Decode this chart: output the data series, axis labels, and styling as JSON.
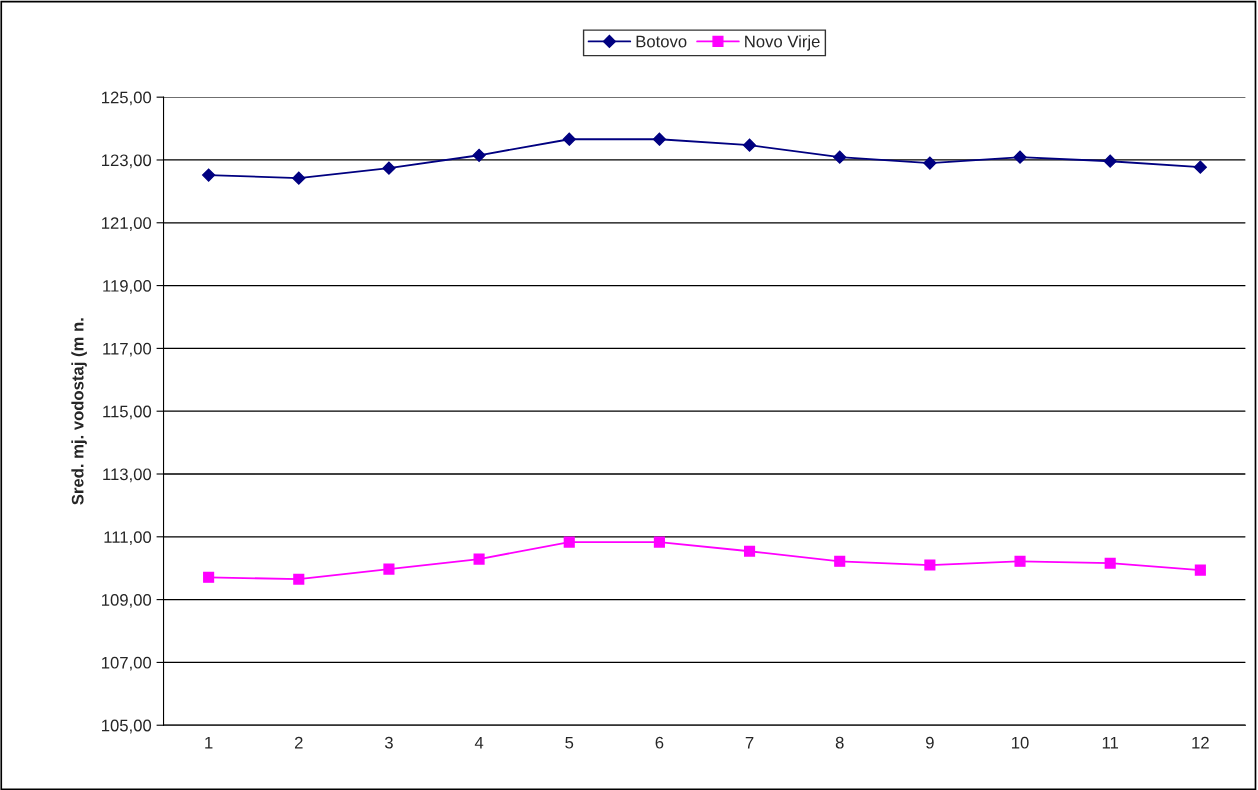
{
  "chart_data": {
    "type": "line",
    "ylabel": "Sred. mj. vodostaj (m n.",
    "categories": [
      "1",
      "2",
      "3",
      "4",
      "5",
      "6",
      "7",
      "8",
      "9",
      "10",
      "11",
      "12"
    ],
    "series": [
      {
        "name": "Botovo",
        "color": "#000080",
        "marker": "diamond",
        "values": [
          122.52,
          122.42,
          122.74,
          123.15,
          123.66,
          123.66,
          123.47,
          123.09,
          122.9,
          123.09,
          122.96,
          122.77
        ]
      },
      {
        "name": "Novo Virje",
        "color": "#ff00ff",
        "marker": "square",
        "values": [
          109.71,
          109.65,
          109.97,
          110.29,
          110.83,
          110.83,
          110.54,
          110.22,
          110.1,
          110.22,
          110.16,
          109.94
        ]
      }
    ],
    "ylim": [
      105,
      125
    ],
    "yticks": [
      {
        "value": 105,
        "label": "105,00"
      },
      {
        "value": 107,
        "label": "107,00"
      },
      {
        "value": 109,
        "label": "109,00"
      },
      {
        "value": 111,
        "label": "111,00"
      },
      {
        "value": 113,
        "label": "113,00"
      },
      {
        "value": 115,
        "label": "115,00"
      },
      {
        "value": 117,
        "label": "117,00"
      },
      {
        "value": 119,
        "label": "119,00"
      },
      {
        "value": 121,
        "label": "121,00"
      },
      {
        "value": 123,
        "label": "123,00"
      },
      {
        "value": 125,
        "label": "125,00"
      }
    ],
    "grid": "y",
    "legend": "top",
    "line_style": "solid"
  }
}
